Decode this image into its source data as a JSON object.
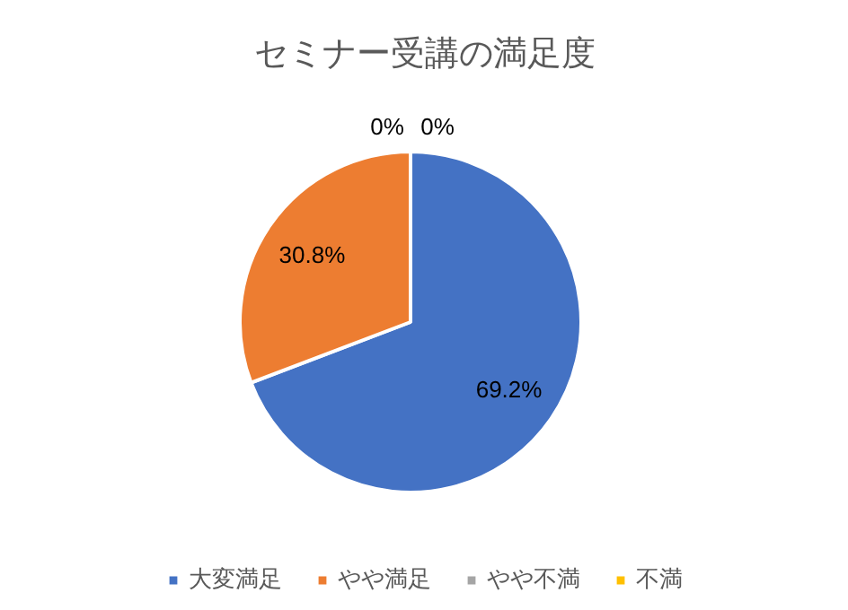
{
  "chart_data": {
    "type": "pie",
    "title": "セミナー受講の満足度",
    "categories": [
      "大変満足",
      "やや満足",
      "やや不満",
      "不満"
    ],
    "values": [
      69.2,
      30.8,
      0,
      0
    ],
    "colors": [
      "#4472c4",
      "#ed7d31",
      "#a5a5a5",
      "#ffc000"
    ],
    "value_labels": [
      "69.2%",
      "30.8%",
      "0%",
      "0%"
    ],
    "legend": "bottom"
  }
}
